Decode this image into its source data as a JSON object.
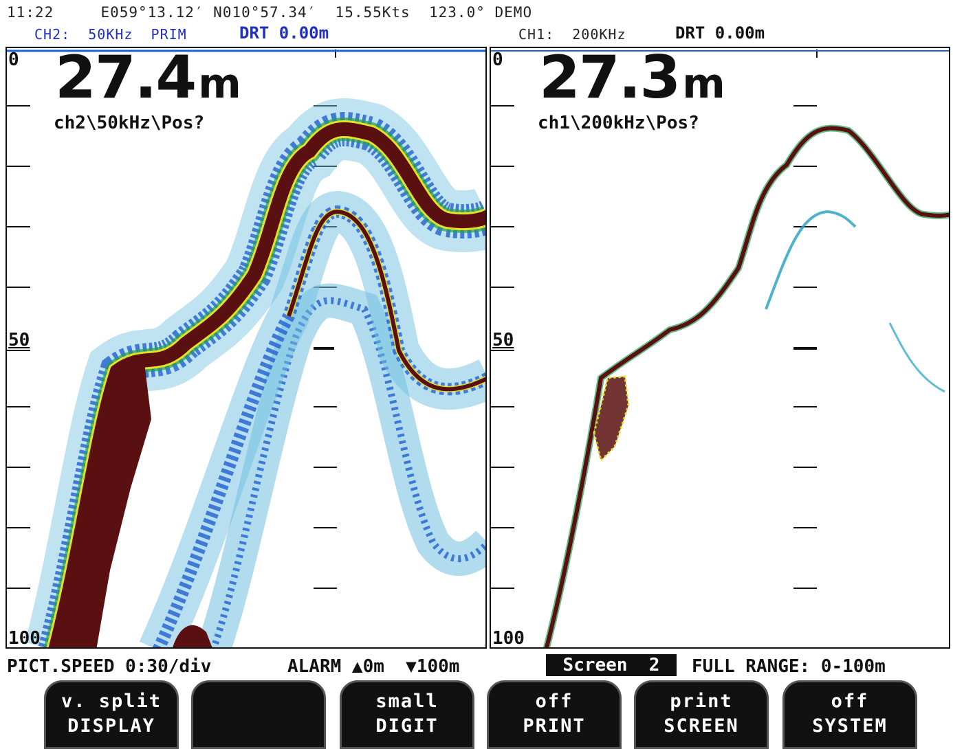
{
  "status": {
    "time": "11:22",
    "longitude": "E059°13.12′",
    "latitude": "N010°57.34′",
    "speed": "15.55Kts",
    "heading": "123.0°",
    "mode": "DEMO"
  },
  "channels": [
    {
      "header": "CH2:  50KHz  PRIM",
      "drt": "DRT 0.00m",
      "depth_value": "27.4",
      "depth_unit": "m",
      "label": "ch2\\50kHz\\Pos?",
      "scale_top": "0",
      "scale_mid": "50",
      "scale_bottom": "100"
    },
    {
      "header": "CH1:  200KHz",
      "drt": "DRT 0.00m",
      "depth_value": "27.3",
      "depth_unit": "m",
      "label": "ch1\\200kHz\\Pos?",
      "scale_top": "0",
      "scale_mid": "50",
      "scale_bottom": "100"
    }
  ],
  "footer": {
    "pict_speed": "PICT.SPEED 0:30/div",
    "alarm": "ALARM ▲0m  ▼100m",
    "screen": "Screen  2",
    "full_range": "FULL RANGE: 0-100m"
  },
  "softkeys": [
    {
      "top": "v. split",
      "bottom": "DISPLAY"
    },
    {
      "top": "",
      "bottom": ""
    },
    {
      "top": "small",
      "bottom": "DIGIT"
    },
    {
      "top": "off",
      "bottom": "PRINT"
    },
    {
      "top": "print",
      "bottom": "SCREEN"
    },
    {
      "top": "off",
      "bottom": "SYSTEM"
    }
  ],
  "colors": {
    "bottom_echo": "#5a1010",
    "echo_red": "#c81818",
    "echo_yellow": "#e8e020",
    "echo_green": "#20a050",
    "echo_blue": "#2060d0",
    "echo_light": "#70c0e0"
  }
}
